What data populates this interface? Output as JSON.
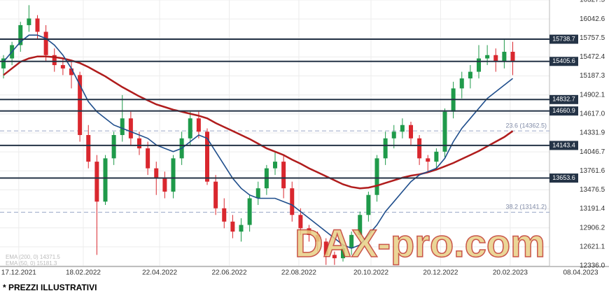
{
  "chart_data": {
    "type": "candlestick",
    "open": [
      15300,
      15450,
      15650,
      15950,
      16050,
      15850,
      15500,
      15350,
      15300,
      15200,
      14300,
      13900,
      13300,
      13950,
      14300,
      14550,
      14250,
      14100,
      13800,
      13650,
      13450,
      13950,
      14250,
      14550,
      14350,
      13600,
      13200,
      13000,
      12850,
      12950,
      13350,
      13500,
      13800,
      13900,
      13500,
      13100,
      12900,
      12800,
      12700,
      12500,
      12450,
      12600,
      12800,
      13100,
      13400,
      13950,
      14250,
      14350,
      14450,
      14250,
      13950,
      13900,
      14050,
      14650,
      15000,
      15150,
      15250,
      15450,
      15500,
      15400,
      15550
    ],
    "high": [
      15500,
      15700,
      16000,
      16250,
      16100,
      15950,
      15600,
      15450,
      15400,
      15250,
      14450,
      14000,
      14000,
      14350,
      14900,
      14650,
      14350,
      14200,
      13900,
      13750,
      14000,
      14350,
      14650,
      14650,
      14400,
      13700,
      13350,
      13100,
      13050,
      13400,
      13600,
      13850,
      14050,
      14000,
      13600,
      13200,
      12950,
      12850,
      12750,
      12550,
      12650,
      12850,
      13150,
      13450,
      14000,
      14350,
      14450,
      14550,
      14500,
      14300,
      14000,
      14100,
      14700,
      15100,
      15250,
      15350,
      15650,
      15650,
      15600,
      15750,
      15700
    ],
    "low": [
      15150,
      15350,
      15550,
      15850,
      15750,
      15400,
      15250,
      15200,
      15000,
      14200,
      13800,
      12500,
      13250,
      13850,
      14200,
      14150,
      14000,
      13700,
      13400,
      13350,
      13350,
      13850,
      14150,
      14250,
      13550,
      13100,
      12900,
      12750,
      12700,
      12850,
      13250,
      13400,
      13700,
      13350,
      13000,
      12800,
      12700,
      12550,
      12350,
      12350,
      12400,
      12500,
      12750,
      13000,
      13300,
      13850,
      14100,
      14250,
      14150,
      13850,
      13750,
      13800,
      13950,
      14550,
      14850,
      15000,
      15150,
      15350,
      15250,
      15300,
      15200
    ],
    "close": [
      15450,
      15650,
      15950,
      16050,
      15850,
      15500,
      15350,
      15300,
      15200,
      14300,
      13900,
      13300,
      13950,
      14300,
      14550,
      14250,
      14100,
      13800,
      13650,
      13450,
      13950,
      14250,
      14550,
      14350,
      13600,
      13200,
      13000,
      12850,
      12950,
      13350,
      13500,
      13800,
      13900,
      13500,
      13100,
      12900,
      12800,
      12700,
      12500,
      12450,
      12600,
      12800,
      13100,
      13400,
      13950,
      14250,
      14350,
      14450,
      14250,
      13950,
      13900,
      14050,
      14650,
      15000,
      15150,
      15250,
      15450,
      15500,
      15400,
      15550,
      15400
    ],
    "up_color": "#1f9a4a",
    "down_color": "#d9272e",
    "series": [
      {
        "name": "EMA (200, 0) 14371.5",
        "color": "#b01c1c",
        "values": [
          15200,
          15300,
          15400,
          15450,
          15480,
          15480,
          15470,
          15450,
          15420,
          15380,
          15320,
          15250,
          15180,
          15100,
          15020,
          14950,
          14880,
          14820,
          14760,
          14720,
          14680,
          14650,
          14620,
          14590,
          14550,
          14480,
          14420,
          14360,
          14300,
          14240,
          14170,
          14100,
          14050,
          14000,
          13930,
          13870,
          13800,
          13740,
          13680,
          13620,
          13560,
          13520,
          13500,
          13510,
          13540,
          13580,
          13620,
          13660,
          13690,
          13710,
          13740,
          13780,
          13830,
          13880,
          13940,
          14000,
          14060,
          14130,
          14200,
          14270,
          14360
        ]
      },
      {
        "name": "EMA (50, 0) 15181.3",
        "color": "#1f4e8c",
        "values": [
          15400,
          15550,
          15700,
          15800,
          15800,
          15750,
          15650,
          15500,
          15300,
          15050,
          14800,
          14650,
          14550,
          14450,
          14400,
          14350,
          14300,
          14250,
          14150,
          14100,
          14050,
          14100,
          14200,
          14300,
          14250,
          14050,
          13850,
          13650,
          13500,
          13400,
          13350,
          13350,
          13350,
          13300,
          13250,
          13150,
          13050,
          12950,
          12850,
          12750,
          12650,
          12600,
          12650,
          12800,
          12950,
          13150,
          13300,
          13450,
          13600,
          13700,
          13750,
          13800,
          13950,
          14200,
          14400,
          14550,
          14700,
          14850,
          14950,
          15050,
          15150
        ]
      }
    ],
    "ylim": [
      12336,
      16327.5
    ],
    "yticks": [
      {
        "value": 12336,
        "label": "12336.0"
      },
      12621.1,
      12906.2,
      13191.4,
      13476.5,
      13761.6,
      14046.7,
      14331.9,
      {
        "value": 14617,
        "label": "14617.0"
      },
      14902.1,
      15187.3,
      15472.4,
      15757.5,
      16042.6,
      16327.5
    ],
    "xlim": [
      0,
      64
    ],
    "xticks": [
      {
        "value": 1.8,
        "label": "17.12.2021"
      },
      {
        "value": 9.4,
        "label": "18.02.2022"
      },
      {
        "value": 18.4,
        "label": "22.04.2022"
      },
      {
        "value": 26.6,
        "label": "22.06.2022"
      },
      {
        "value": 34.8,
        "label": "22.08.2022"
      },
      {
        "value": 43.3,
        "label": "20.10.2022"
      },
      {
        "value": 51.5,
        "label": "20.12.2022"
      },
      {
        "value": 59.7,
        "label": "20.02.2023"
      },
      {
        "value": 68,
        "label": "08.04.2023"
      }
    ],
    "levels": [
      15738.7,
      15405.6,
      14832.7,
      14660.9,
      14143.4,
      13653.6
    ],
    "fib_levels": [
      {
        "value": 14362.5,
        "label": "23.6 (14362.5)"
      },
      {
        "value": 13141.2,
        "label": "38.2 (13141.2)"
      }
    ],
    "grid": true,
    "watermark": "DAX-pro.com",
    "footnote": "* PREZZI ILLUSTRATIVI"
  }
}
